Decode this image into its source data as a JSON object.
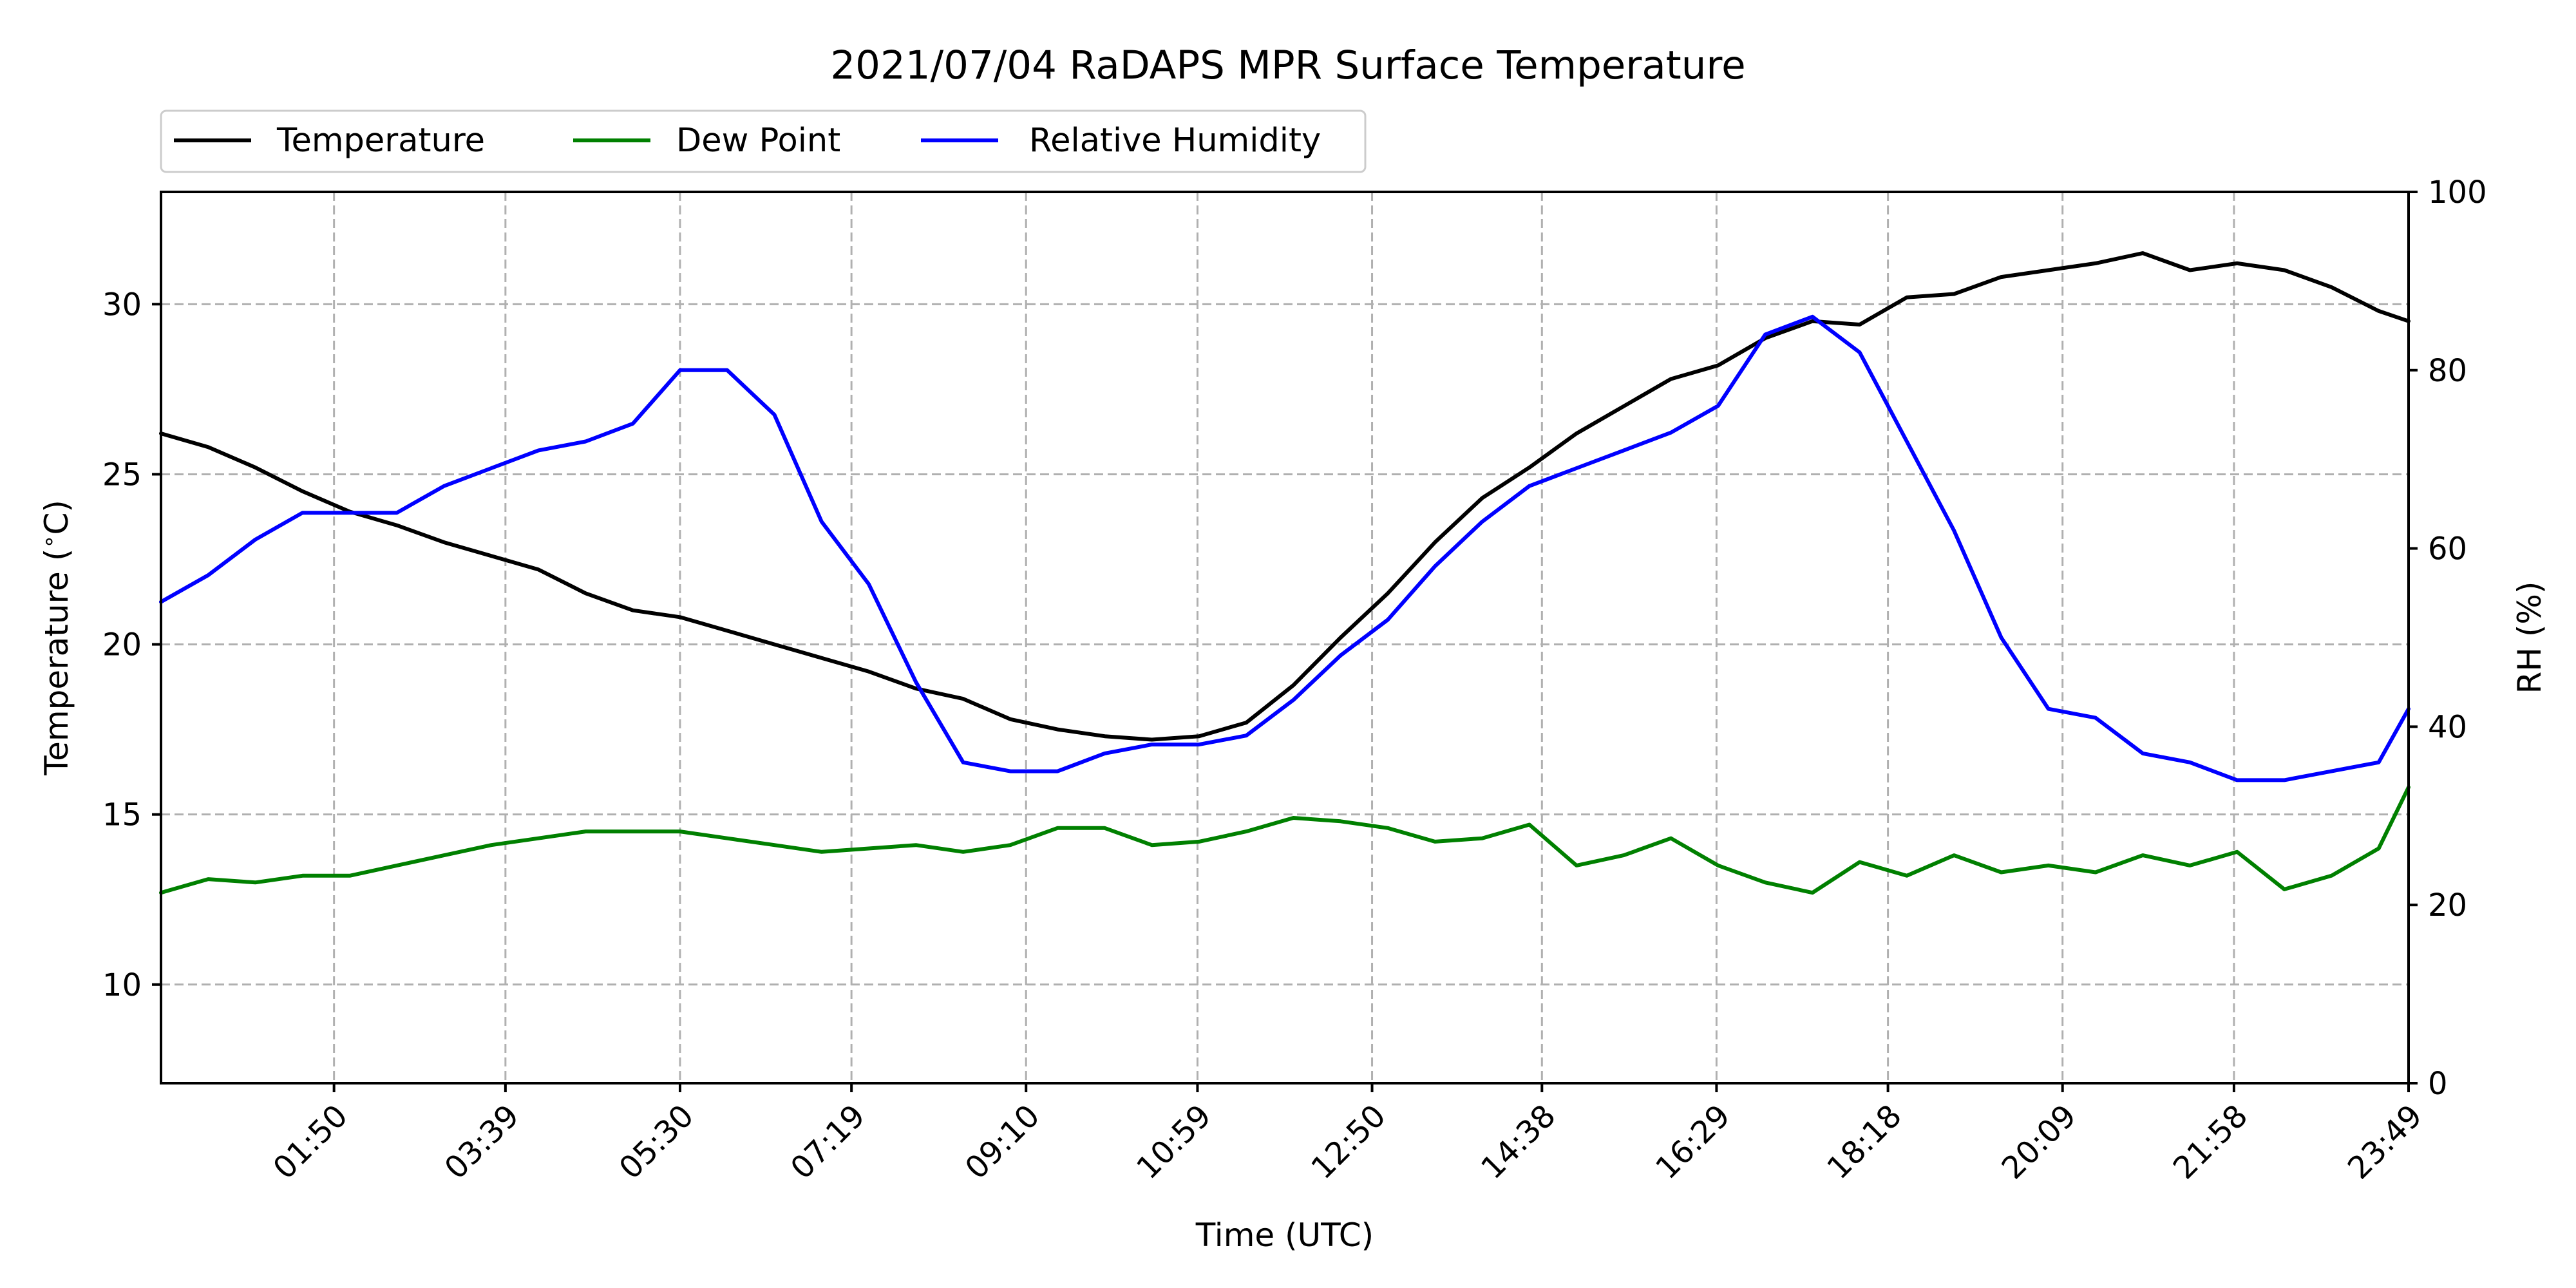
{
  "chart_data": {
    "type": "line",
    "title": "2021/07/04 RaDAPS MPR Surface Temperature",
    "xlabel": "Time (UTC)",
    "ylabel": "Temperature ($^\\circ$C)",
    "ylabel_parts": [
      "Temperature (",
      "∘",
      "C)"
    ],
    "y2label": "RH (%)",
    "xlim": [
      "00:00",
      "23:49"
    ],
    "ylim": [
      7.1,
      33.3
    ],
    "y2lim": [
      0,
      100
    ],
    "x_ticks": [
      "01:50",
      "03:39",
      "05:30",
      "07:19",
      "09:10",
      "10:59",
      "12:50",
      "14:38",
      "16:29",
      "18:18",
      "20:09",
      "21:58",
      "23:49"
    ],
    "y_ticks": [
      "10",
      "15",
      "20",
      "25",
      "30"
    ],
    "y2_ticks": [
      "0",
      "20",
      "40",
      "60",
      "80",
      "100"
    ],
    "grid": true,
    "legend": "above-top-left",
    "x": [
      "00:00",
      "00:30",
      "01:00",
      "01:30",
      "02:00",
      "02:30",
      "03:00",
      "03:30",
      "04:00",
      "04:30",
      "05:00",
      "05:30",
      "06:00",
      "06:30",
      "07:00",
      "07:30",
      "08:00",
      "08:30",
      "09:00",
      "09:30",
      "10:00",
      "10:30",
      "11:00",
      "11:30",
      "12:00",
      "12:30",
      "13:00",
      "13:30",
      "14:00",
      "14:30",
      "15:00",
      "15:30",
      "16:00",
      "16:30",
      "17:00",
      "17:30",
      "18:00",
      "18:30",
      "19:00",
      "19:30",
      "20:00",
      "20:30",
      "21:00",
      "21:30",
      "22:00",
      "22:30",
      "23:00",
      "23:30",
      "23:49"
    ],
    "series": [
      {
        "name": "Temperature",
        "axis": "left",
        "color": "#000000",
        "values": [
          26.2,
          25.8,
          25.2,
          24.5,
          23.9,
          23.5,
          23.0,
          22.6,
          22.2,
          21.5,
          21.0,
          20.8,
          20.4,
          20.0,
          19.6,
          19.2,
          18.7,
          18.4,
          17.8,
          17.5,
          17.3,
          17.2,
          17.3,
          17.7,
          18.8,
          20.2,
          21.5,
          23.0,
          24.3,
          25.2,
          26.2,
          27.0,
          27.8,
          28.2,
          29.0,
          29.5,
          29.4,
          30.2,
          30.3,
          30.8,
          31.0,
          31.2,
          31.5,
          31.0,
          31.2,
          31.0,
          30.5,
          29.8,
          29.5
        ]
      },
      {
        "name": "Dew Point",
        "axis": "left",
        "color": "#008000",
        "values": [
          12.7,
          13.1,
          13.0,
          13.2,
          13.2,
          13.5,
          13.8,
          14.1,
          14.3,
          14.5,
          14.5,
          14.5,
          14.3,
          14.1,
          13.9,
          14.0,
          14.1,
          13.9,
          14.1,
          14.6,
          14.6,
          14.1,
          14.2,
          14.5,
          14.9,
          14.8,
          14.6,
          14.2,
          14.3,
          14.7,
          13.5,
          13.8,
          14.3,
          13.5,
          13.0,
          12.7,
          13.6,
          13.2,
          13.8,
          13.3,
          13.5,
          13.3,
          13.8,
          13.5,
          13.9,
          12.8,
          13.2,
          14.0,
          15.8
        ]
      },
      {
        "name": "Relative Humidity",
        "axis": "right",
        "color": "#0000ff",
        "values": [
          54,
          57,
          61,
          64,
          64,
          64,
          67,
          69,
          71,
          72,
          74,
          80,
          80,
          75,
          63,
          56,
          45,
          36,
          35,
          35,
          37,
          38,
          38,
          39,
          43,
          48,
          52,
          58,
          63,
          67,
          69,
          71,
          73,
          76,
          84,
          86,
          82,
          72,
          62,
          50,
          42,
          41,
          37,
          36,
          34,
          34,
          35,
          36,
          42
        ]
      }
    ]
  }
}
